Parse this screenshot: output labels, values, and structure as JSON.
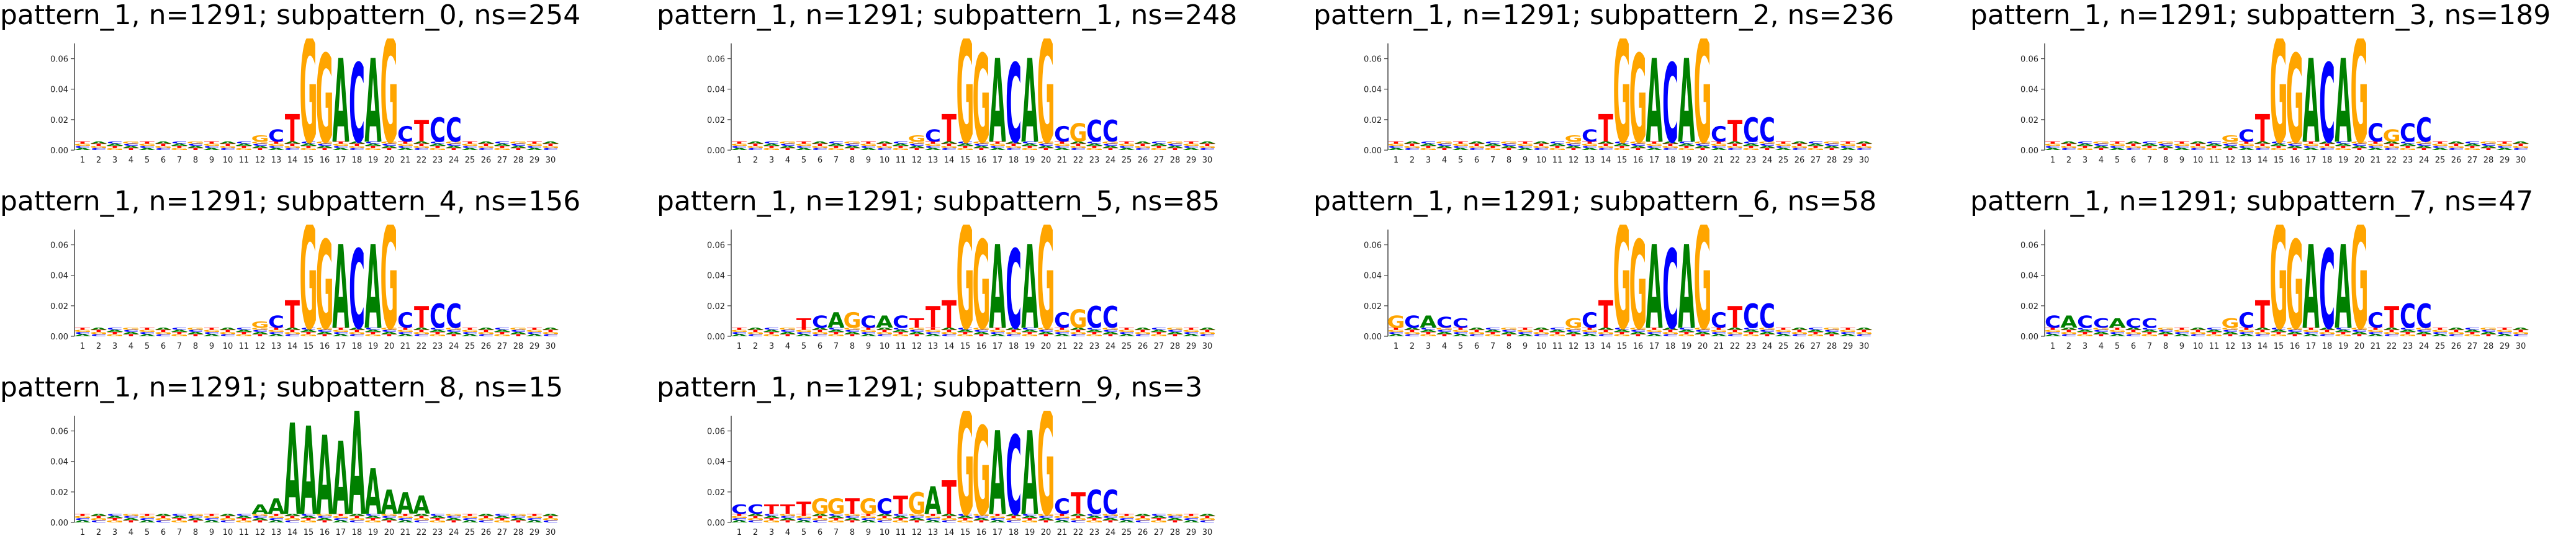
{
  "colors": {
    "A": "#008000",
    "C": "#0000ff",
    "G": "#ffa500",
    "T": "#ff0000"
  },
  "chart_data": [
    {
      "type": "sequence-logo",
      "title": "pattern_1, n=1291; subpattern_0, ns=254",
      "ylim": [
        0,
        0.07
      ],
      "yticks": [
        "0.00",
        "0.02",
        "0.04",
        "0.06"
      ],
      "x": [
        1,
        2,
        3,
        4,
        5,
        6,
        7,
        8,
        9,
        10,
        11,
        12,
        13,
        14,
        15,
        16,
        17,
        18,
        19,
        20,
        21,
        22,
        23,
        24,
        25,
        26,
        27,
        28,
        29,
        30
      ],
      "motif": {
        "start": 12,
        "letters": "GCTGGACAGCTCC",
        "heights": [
          0.004,
          0.008,
          0.018,
          0.068,
          0.058,
          0.055,
          0.052,
          0.055,
          0.068,
          0.01,
          0.014,
          0.016,
          0.016
        ]
      }
    },
    {
      "type": "sequence-logo",
      "title": "pattern_1, n=1291; subpattern_1, ns=248",
      "ylim": [
        0,
        0.07
      ],
      "yticks": [
        "0.00",
        "0.02",
        "0.04",
        "0.06"
      ],
      "x": [
        1,
        2,
        3,
        4,
        5,
        6,
        7,
        8,
        9,
        10,
        11,
        12,
        13,
        14,
        15,
        16,
        17,
        18,
        19,
        20,
        21,
        22,
        23,
        24,
        25,
        26,
        27,
        28,
        29,
        30
      ],
      "motif": {
        "start": 12,
        "letters": "GCTGGACAGCGCC",
        "heights": [
          0.004,
          0.008,
          0.018,
          0.068,
          0.058,
          0.055,
          0.052,
          0.055,
          0.068,
          0.01,
          0.012,
          0.014,
          0.014
        ]
      }
    },
    {
      "type": "sequence-logo",
      "title": "pattern_1, n=1291; subpattern_2, ns=236",
      "ylim": [
        0,
        0.07
      ],
      "yticks": [
        "0.00",
        "0.02",
        "0.04",
        "0.06"
      ],
      "x": [
        1,
        2,
        3,
        4,
        5,
        6,
        7,
        8,
        9,
        10,
        11,
        12,
        13,
        14,
        15,
        16,
        17,
        18,
        19,
        20,
        21,
        22,
        23,
        24,
        25,
        26,
        27,
        28,
        29,
        30
      ],
      "motif": {
        "start": 12,
        "letters": "GCTGGACAGCTCC",
        "heights": [
          0.004,
          0.008,
          0.018,
          0.068,
          0.058,
          0.055,
          0.052,
          0.055,
          0.068,
          0.01,
          0.014,
          0.016,
          0.016
        ]
      }
    },
    {
      "type": "sequence-logo",
      "title": "pattern_1, n=1291; subpattern_3, ns=189",
      "ylim": [
        0,
        0.07
      ],
      "yticks": [
        "0.00",
        "0.02",
        "0.04",
        "0.06"
      ],
      "x": [
        1,
        2,
        3,
        4,
        5,
        6,
        7,
        8,
        9,
        10,
        11,
        12,
        13,
        14,
        15,
        16,
        17,
        18,
        19,
        20,
        21,
        22,
        23,
        24,
        25,
        26,
        27,
        28,
        29,
        30
      ],
      "motif": {
        "start": 12,
        "letters": "GCTGGACAGCGCC",
        "heights": [
          0.004,
          0.008,
          0.018,
          0.068,
          0.058,
          0.055,
          0.052,
          0.055,
          0.068,
          0.012,
          0.008,
          0.012,
          0.016
        ]
      }
    },
    {
      "type": "sequence-logo",
      "title": "pattern_1, n=1291; subpattern_4, ns=156",
      "ylim": [
        0,
        0.07
      ],
      "yticks": [
        "0.00",
        "0.02",
        "0.04",
        "0.06"
      ],
      "x": [
        1,
        2,
        3,
        4,
        5,
        6,
        7,
        8,
        9,
        10,
        11,
        12,
        13,
        14,
        15,
        16,
        17,
        18,
        19,
        20,
        21,
        22,
        23,
        24,
        25,
        26,
        27,
        28,
        29,
        30
      ],
      "motif": {
        "start": 12,
        "letters": "GCTGGACAGCTCC",
        "heights": [
          0.004,
          0.008,
          0.018,
          0.068,
          0.058,
          0.055,
          0.052,
          0.055,
          0.068,
          0.01,
          0.014,
          0.016,
          0.016
        ]
      }
    },
    {
      "type": "sequence-logo",
      "title": "pattern_1, n=1291; subpattern_5, ns=85",
      "ylim": [
        0,
        0.07
      ],
      "yticks": [
        "0.00",
        "0.02",
        "0.04",
        "0.06"
      ],
      "x": [
        1,
        2,
        3,
        4,
        5,
        6,
        7,
        8,
        9,
        10,
        11,
        12,
        13,
        14,
        15,
        16,
        17,
        18,
        19,
        20,
        21,
        22,
        23,
        24,
        25,
        26,
        27,
        28,
        29,
        30
      ],
      "motif": {
        "start": 5,
        "letters": "TCAGCACTTTGGACAGCGCC",
        "heights": [
          0.006,
          0.008,
          0.01,
          0.01,
          0.008,
          0.008,
          0.008,
          0.006,
          0.014,
          0.018,
          0.068,
          0.058,
          0.055,
          0.052,
          0.055,
          0.068,
          0.01,
          0.012,
          0.014,
          0.014
        ]
      }
    },
    {
      "type": "sequence-logo",
      "title": "pattern_1, n=1291; subpattern_6, ns=58",
      "ylim": [
        0,
        0.07
      ],
      "yticks": [
        "0.00",
        "0.02",
        "0.04",
        "0.06"
      ],
      "x": [
        1,
        2,
        3,
        4,
        5,
        6,
        7,
        8,
        9,
        10,
        11,
        12,
        13,
        14,
        15,
        16,
        17,
        18,
        19,
        20,
        21,
        22,
        23,
        24,
        25,
        26,
        27,
        28,
        29,
        30
      ],
      "motif": {
        "start": 1,
        "letters": "GCACC",
        "heights": [
          0.008,
          0.008,
          0.008,
          0.007,
          0.006
        ],
        "start2": 12,
        "letters2": "GCTGGACAGCTCC",
        "heights2": [
          0.006,
          0.01,
          0.018,
          0.068,
          0.058,
          0.055,
          0.052,
          0.055,
          0.068,
          0.01,
          0.014,
          0.016,
          0.016
        ]
      }
    },
    {
      "type": "sequence-logo",
      "title": "pattern_1, n=1291; subpattern_7, ns=47",
      "ylim": [
        0,
        0.07
      ],
      "yticks": [
        "0.00",
        "0.02",
        "0.04",
        "0.06"
      ],
      "x": [
        1,
        2,
        3,
        4,
        5,
        6,
        7,
        8,
        9,
        10,
        11,
        12,
        13,
        14,
        15,
        16,
        17,
        18,
        19,
        20,
        21,
        22,
        23,
        24,
        25,
        26,
        27,
        28,
        29,
        30
      ],
      "motif": {
        "start": 1,
        "letters": "CACCACC",
        "heights": [
          0.008,
          0.008,
          0.008,
          0.006,
          0.006,
          0.006,
          0.006
        ],
        "start2": 12,
        "letters2": "GCTGGACAGCTCC",
        "heights2": [
          0.006,
          0.01,
          0.018,
          0.068,
          0.058,
          0.055,
          0.052,
          0.055,
          0.068,
          0.01,
          0.014,
          0.016,
          0.016
        ]
      }
    },
    {
      "type": "sequence-logo",
      "title": "pattern_1, n=1291; subpattern_8, ns=15",
      "ylim": [
        0,
        0.07
      ],
      "yticks": [
        "0.00",
        "0.02",
        "0.04",
        "0.06"
      ],
      "x": [
        1,
        2,
        3,
        4,
        5,
        6,
        7,
        8,
        9,
        10,
        11,
        12,
        13,
        14,
        15,
        16,
        17,
        18,
        19,
        20,
        21,
        22,
        23,
        24,
        25,
        26,
        27,
        28,
        29,
        30
      ],
      "motif": {
        "start": 12,
        "letters": "AAAAAAAAAAA",
        "heights": [
          0.006,
          0.01,
          0.06,
          0.058,
          0.052,
          0.048,
          0.068,
          0.03,
          0.016,
          0.014,
          0.012
        ]
      }
    },
    {
      "type": "sequence-logo",
      "title": "pattern_1, n=1291; subpattern_9, ns=3",
      "ylim": [
        0,
        0.07
      ],
      "yticks": [
        "0.00",
        "0.02",
        "0.04",
        "0.06"
      ],
      "x": [
        1,
        2,
        3,
        4,
        5,
        6,
        7,
        8,
        9,
        10,
        11,
        12,
        13,
        14,
        15,
        16,
        17,
        18,
        19,
        20,
        21,
        22,
        23,
        24,
        25,
        26,
        27,
        28,
        29,
        30
      ],
      "motif": {
        "start": 1,
        "letters": "CCTTTGGTGCTGATGGACAGCTCC",
        "heights": [
          0.006,
          0.006,
          0.006,
          0.006,
          0.008,
          0.01,
          0.01,
          0.01,
          0.01,
          0.01,
          0.012,
          0.014,
          0.018,
          0.022,
          0.068,
          0.058,
          0.055,
          0.052,
          0.055,
          0.068,
          0.01,
          0.014,
          0.016,
          0.016
        ]
      }
    }
  ]
}
